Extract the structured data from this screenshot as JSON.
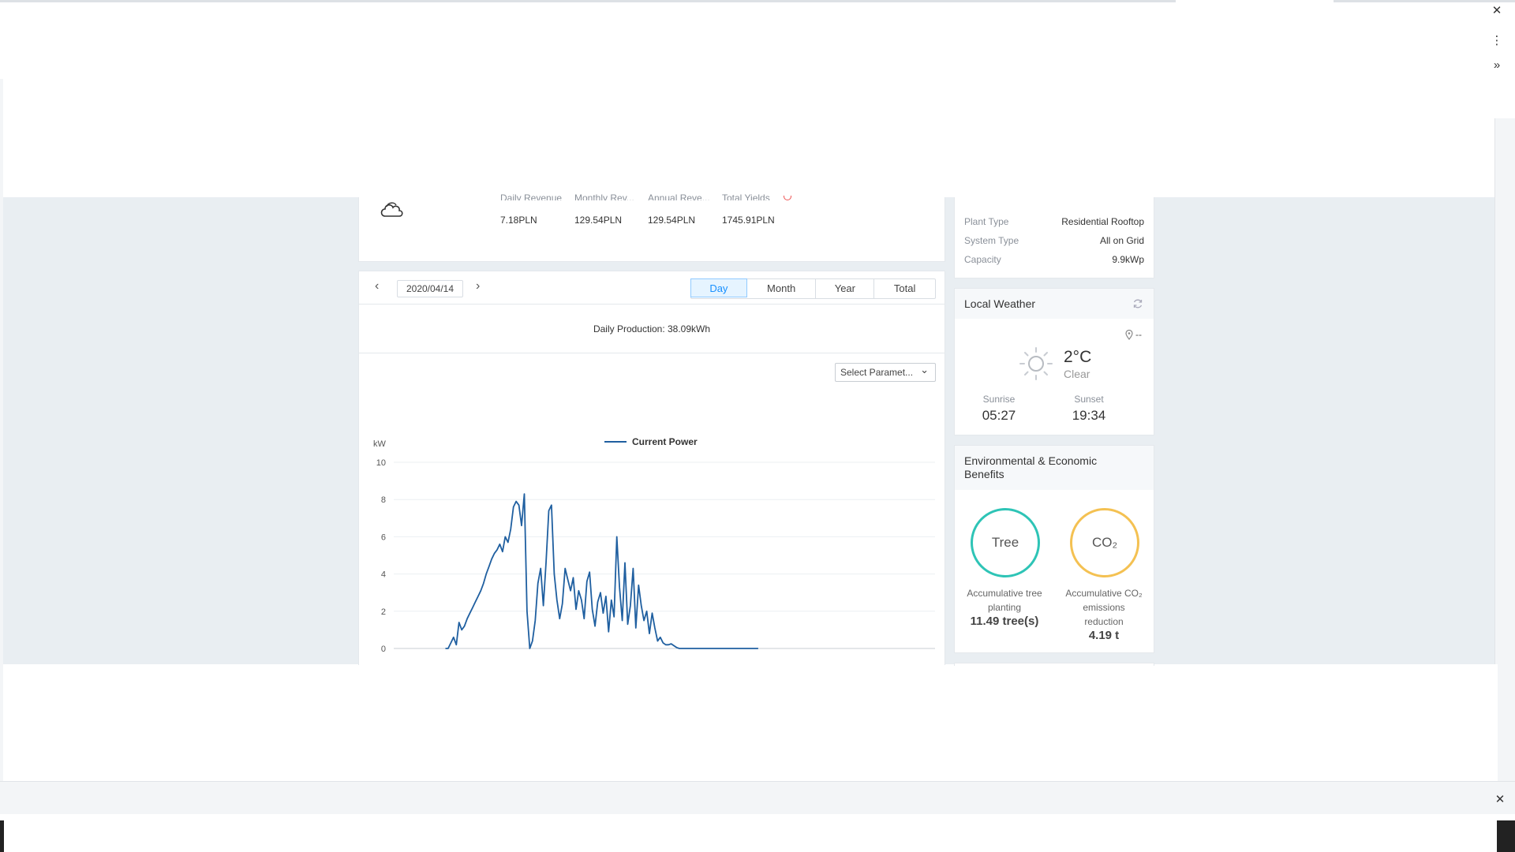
{
  "window": {
    "close_glyph": "✕",
    "menu_glyph": "⋮",
    "more_glyph": "»"
  },
  "summary": {
    "labels": [
      "Daily Revenue",
      "Monthly Rev...",
      "Annual Reve...",
      "Total Yields"
    ],
    "values": [
      "7.18PLN",
      "129.54PLN",
      "129.54PLN",
      "1745.91PLN"
    ]
  },
  "plant_info": {
    "rows": [
      {
        "label": "Plant Type",
        "value": "Residential Rooftop"
      },
      {
        "label": "System Type",
        "value": "All on Grid"
      },
      {
        "label": "Capacity",
        "value": "9.9kWp"
      }
    ]
  },
  "date_nav": {
    "date": "2020/04/14",
    "prev_glyph": "‹",
    "next_glyph": "›"
  },
  "period_tabs": [
    {
      "label": "Day",
      "active": true
    },
    {
      "label": "Month",
      "active": false
    },
    {
      "label": "Year",
      "active": false
    },
    {
      "label": "Total",
      "active": false
    }
  ],
  "production": {
    "text": "Daily Production: 38.09kWh"
  },
  "select_param": {
    "label": "Select Paramet...",
    "chevron": "⌄"
  },
  "weather": {
    "title": "Local Weather",
    "location": "--",
    "temp": "2°C",
    "condition": "Clear",
    "sunrise_label": "Sunrise",
    "sunrise": "05:27",
    "sunset_label": "Sunset",
    "sunset": "19:34"
  },
  "benefits": {
    "title_line1": "Environmental & Economic",
    "title_line2": "Benefits",
    "tree": {
      "circle": "Tree",
      "line1": "Accumulative tree",
      "line2": "planting",
      "value": "11.49 tree(s)"
    },
    "co2": {
      "circle": "CO₂",
      "line1": "Accumulative CO₂",
      "line2": "emissions",
      "line3": "reduction",
      "value": "4.19 t"
    }
  },
  "chart_data": {
    "type": "line",
    "ylabel": "kW",
    "ylim": [
      0,
      10
    ],
    "yticks": [
      0,
      2,
      4,
      6,
      8,
      10
    ],
    "grid": true,
    "legend": "top-center",
    "series": [
      {
        "name": "Current Power",
        "color": "#1f5fa0",
        "x_hours": [
          5.5,
          5.6,
          5.7,
          5.8,
          5.9,
          6.0,
          6.1,
          6.2,
          6.3,
          6.4,
          6.5,
          6.6,
          6.7,
          6.8,
          6.9,
          7.0,
          7.1,
          7.2,
          7.3,
          7.4,
          7.5,
          7.6,
          7.7,
          7.8,
          7.9,
          8.0,
          8.1,
          8.2,
          8.3,
          8.4,
          8.5,
          8.6,
          8.7,
          8.8,
          8.9,
          9.0,
          9.1,
          9.2,
          9.3,
          9.4,
          9.5,
          9.6,
          9.7,
          9.8,
          9.9,
          10.0,
          10.1,
          10.2,
          10.3,
          10.4,
          10.5,
          10.6,
          10.7,
          10.8,
          10.9,
          11.0,
          11.1,
          11.2,
          11.3,
          11.4,
          11.5,
          11.6,
          11.7,
          11.8,
          11.9,
          12.0,
          12.1,
          12.2,
          12.3,
          12.4,
          12.5,
          12.6,
          12.7,
          12.8,
          12.9,
          13.0,
          13.1,
          13.2,
          13.3,
          13.4,
          13.5,
          13.6,
          13.7,
          13.8,
          13.9,
          14.0,
          14.1,
          14.2,
          14.3,
          14.4,
          14.5,
          14.6,
          14.7,
          14.8,
          14.9,
          15.0,
          15.1,
          15.2,
          15.3,
          15.4,
          15.5,
          15.6,
          15.7,
          15.8,
          15.9,
          16.0,
          16.2,
          16.4,
          16.6,
          16.8,
          17.0
        ],
        "values": [
          0,
          0,
          0.3,
          0.6,
          0.2,
          1.4,
          1.0,
          1.2,
          1.6,
          1.9,
          2.2,
          2.5,
          2.8,
          3.1,
          3.5,
          4.0,
          4.4,
          4.8,
          5.1,
          5.3,
          5.6,
          5.2,
          6.0,
          5.7,
          6.4,
          7.6,
          7.9,
          7.7,
          6.6,
          8.3,
          2.0,
          0,
          0.4,
          1.5,
          3.5,
          4.3,
          2.3,
          4.6,
          7.4,
          7.7,
          4.0,
          2.6,
          1.6,
          2.4,
          4.3,
          3.7,
          3.1,
          3.8,
          2.1,
          3.1,
          2.6,
          1.6,
          3.6,
          4.1,
          2.1,
          1.2,
          2.5,
          3.0,
          1.9,
          2.8,
          0.9,
          2.6,
          1.7,
          6.0,
          3.3,
          1.5,
          4.6,
          1.3,
          2.3,
          4.3,
          1.1,
          3.4,
          2.3,
          1.5,
          2.0,
          0.8,
          1.9,
          1.1,
          0.4,
          0.6,
          0.3,
          0.2,
          0.2,
          0.25,
          0.15,
          0.05,
          0,
          0,
          0,
          0,
          0,
          0,
          0,
          0,
          0,
          0,
          0,
          0,
          0,
          0,
          0,
          0,
          0,
          0,
          0,
          0,
          0,
          0,
          0,
          0,
          0
        ]
      }
    ]
  }
}
